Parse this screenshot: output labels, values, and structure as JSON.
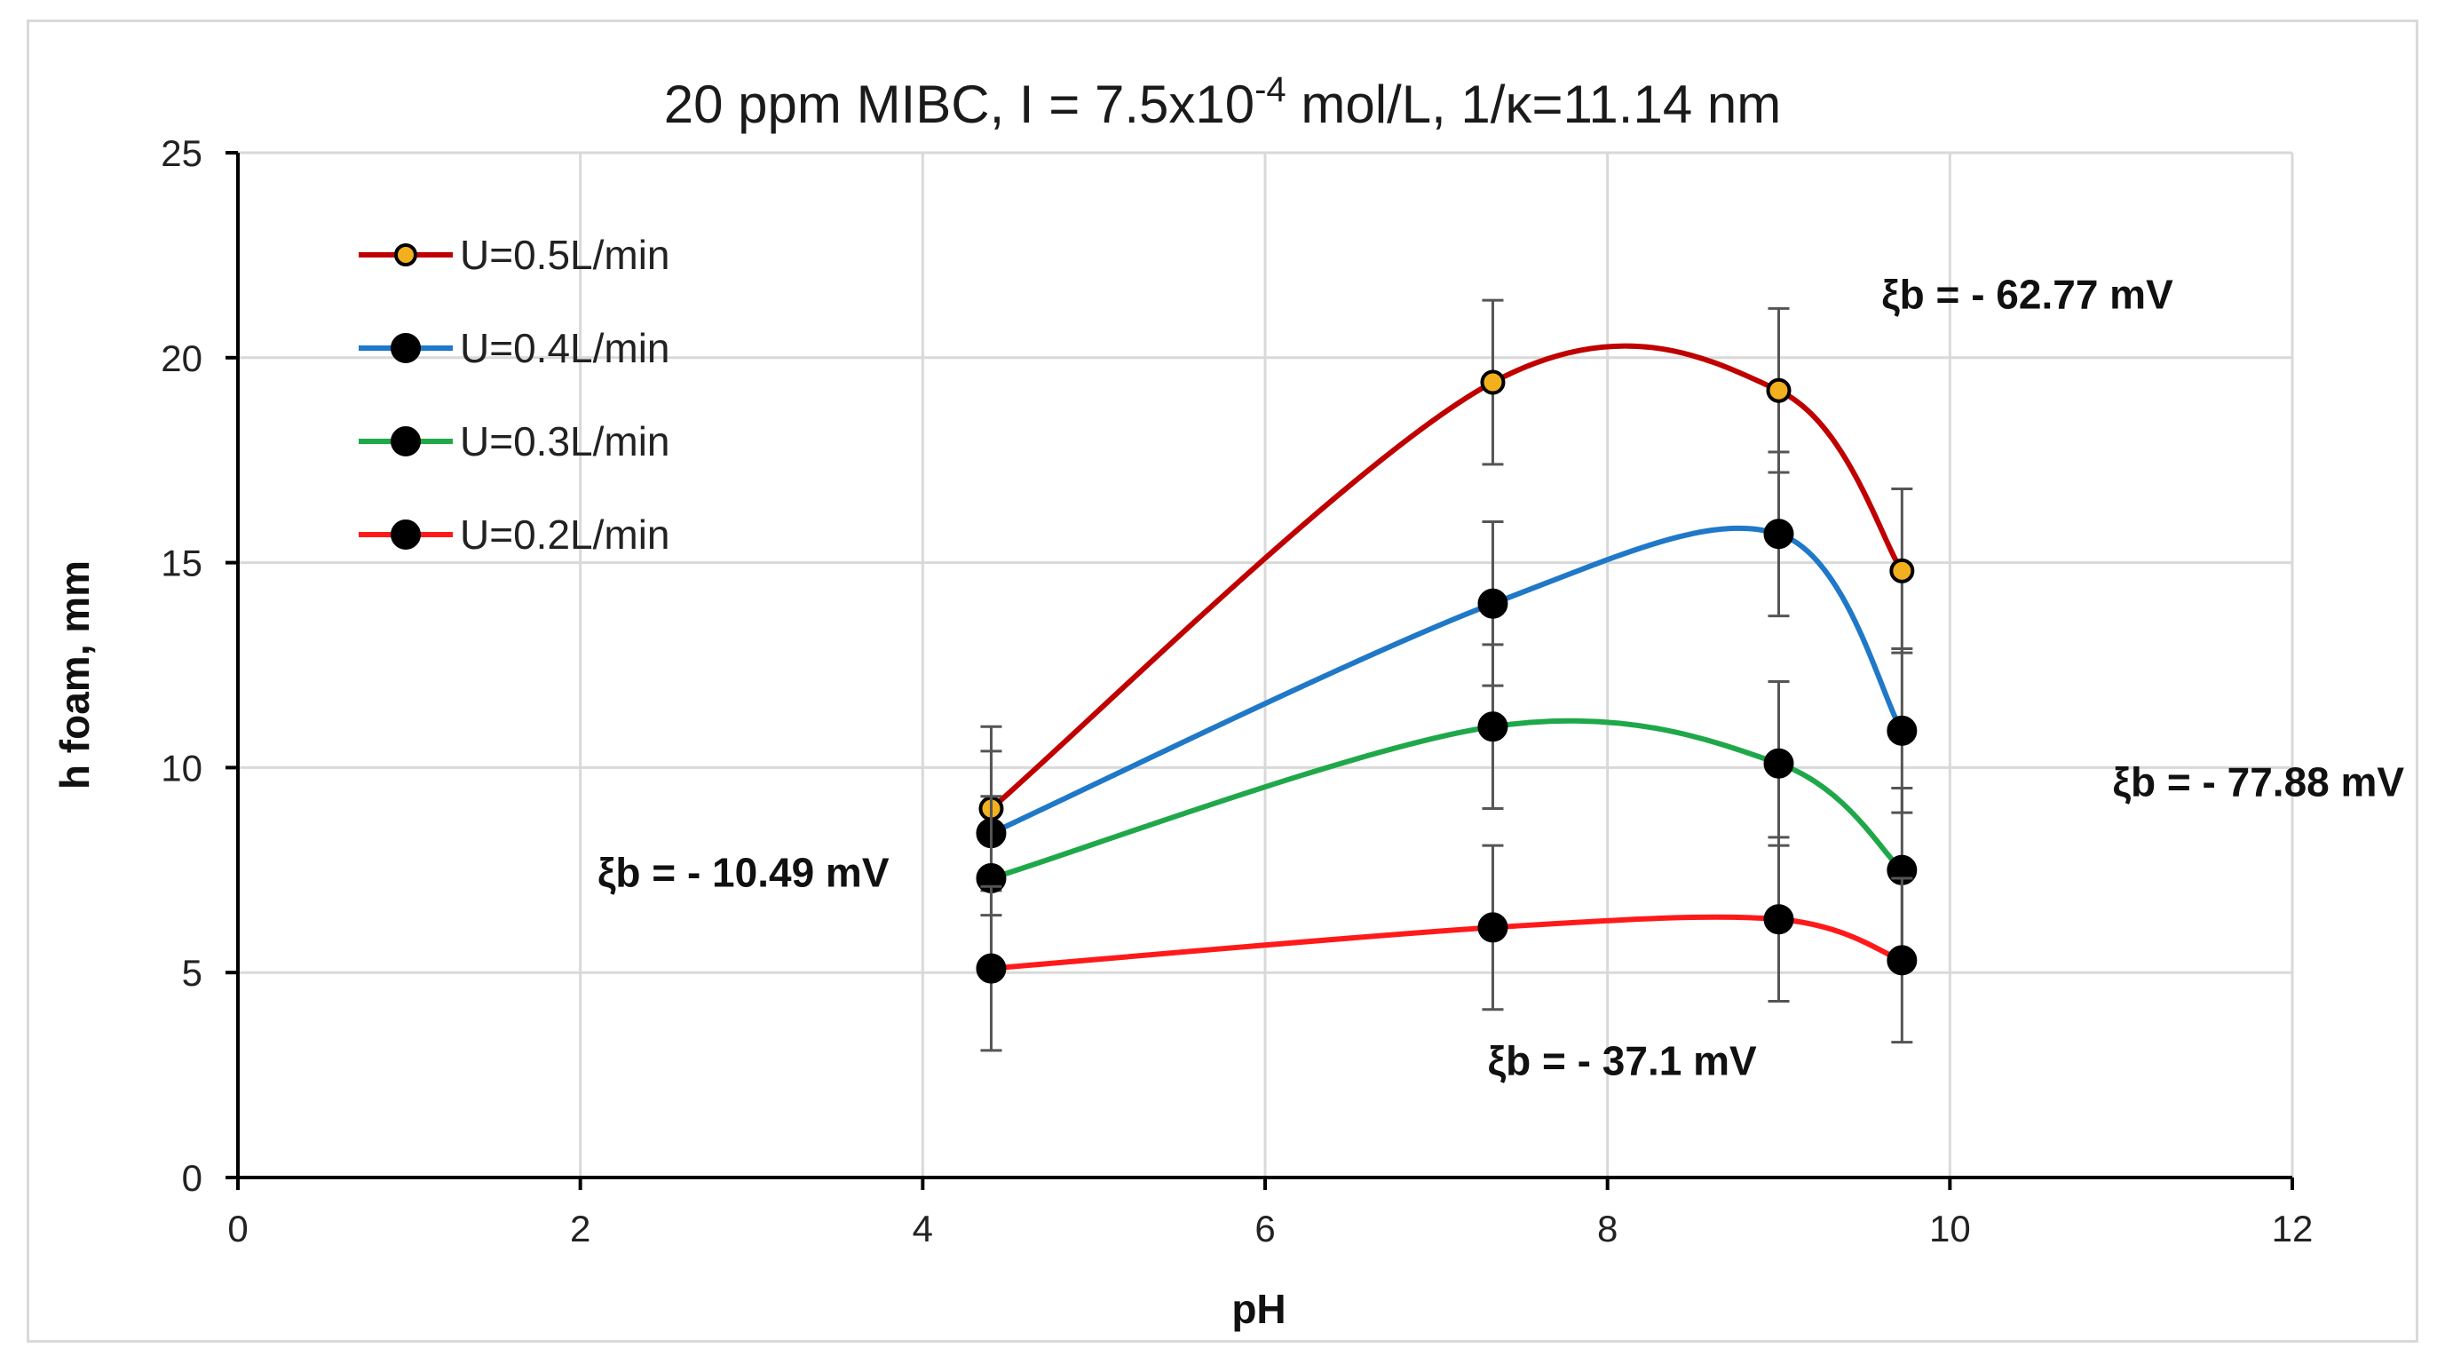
{
  "chart_data": {
    "type": "line",
    "title": {
      "prefix": "20 ppm MIBC, I = 7.5x10",
      "superscript": "-4",
      "suffix": " mol/L, 1/κ=11.14 nm"
    },
    "xlabel": "pH",
    "ylabel": "h foam, mm",
    "xlim": [
      0,
      12
    ],
    "ylim": [
      0,
      25
    ],
    "xticks": [
      0,
      2,
      4,
      6,
      8,
      10,
      12
    ],
    "yticks": [
      0,
      5,
      10,
      15,
      20,
      25
    ],
    "grid": true,
    "legend_position": "top-left",
    "x": [
      4.4,
      7.33,
      9.0,
      9.72
    ],
    "error": 2.0,
    "series": [
      {
        "name": "U=0.5L/min",
        "line_color": "#c00000",
        "marker_color": "#f2b01e",
        "values": [
          9.0,
          19.4,
          19.2,
          14.8
        ]
      },
      {
        "name": "U=0.4L/min",
        "line_color": "#1f78c8",
        "marker_color": "#000000",
        "values": [
          8.4,
          14.0,
          15.7,
          10.9
        ]
      },
      {
        "name": "U=0.3L/min",
        "line_color": "#1fa84a",
        "marker_color": "#000000",
        "values": [
          7.3,
          11.0,
          10.1,
          7.5
        ]
      },
      {
        "name": "U=0.2L/min",
        "line_color": "#ff1a1a",
        "marker_color": "#000000",
        "values": [
          5.1,
          6.1,
          6.3,
          5.3
        ]
      }
    ],
    "annotations": [
      {
        "text": "ξb = - 10.49 mV",
        "x": 2.1,
        "y": 7.1
      },
      {
        "text": "ξb = - 37.1 mV",
        "x": 7.3,
        "y": 2.5
      },
      {
        "text": "ξb = - 62.77 mV",
        "x": 9.6,
        "y": 21.2
      },
      {
        "text": "ξb = - 77.88 mV",
        "x": 10.95,
        "y": 9.3
      }
    ]
  }
}
